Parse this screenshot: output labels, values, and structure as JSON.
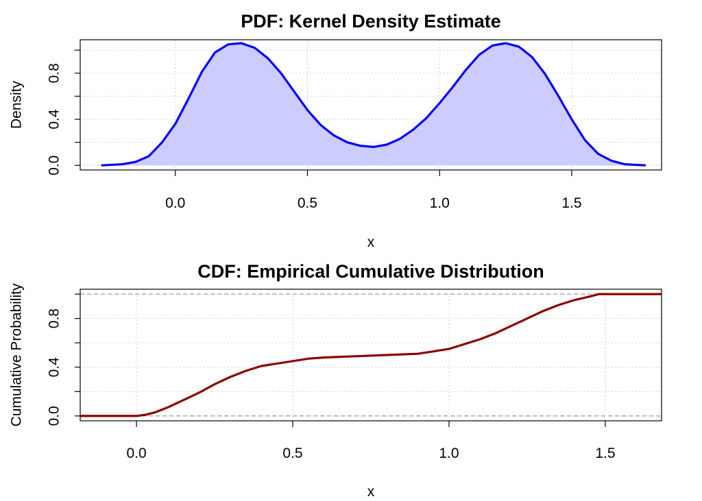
{
  "chart_data": [
    {
      "type": "area",
      "title": "PDF: Kernel Density Estimate",
      "xlabel": "x",
      "ylabel": "Density",
      "xlim": [
        -0.36,
        1.84
      ],
      "ylim": [
        -0.04,
        1.09
      ],
      "x_ticks": [
        0.0,
        0.5,
        1.0,
        1.5
      ],
      "x_tick_labels": [
        "0.0",
        "0.5",
        "1.0",
        "1.5"
      ],
      "y_ticks": [
        0.0,
        0.4,
        0.8
      ],
      "y_tick_labels": [
        "0.0",
        "0.4",
        "0.8"
      ],
      "grid": true,
      "line_color": "#0000ff",
      "fill_color": "#ccccff",
      "series": [
        {
          "x": [
            -0.28,
            -0.2,
            -0.15,
            -0.1,
            -0.05,
            0.0,
            0.05,
            0.1,
            0.15,
            0.2,
            0.25,
            0.3,
            0.35,
            0.4,
            0.45,
            0.5,
            0.55,
            0.6,
            0.65,
            0.7,
            0.75,
            0.8,
            0.85,
            0.9,
            0.95,
            1.0,
            1.05,
            1.1,
            1.15,
            1.2,
            1.25,
            1.3,
            1.35,
            1.4,
            1.45,
            1.5,
            1.55,
            1.6,
            1.65,
            1.7,
            1.78
          ],
          "values": [
            0.0,
            0.01,
            0.03,
            0.08,
            0.2,
            0.36,
            0.58,
            0.81,
            0.98,
            1.05,
            1.06,
            1.02,
            0.93,
            0.8,
            0.64,
            0.48,
            0.35,
            0.26,
            0.2,
            0.17,
            0.16,
            0.18,
            0.23,
            0.31,
            0.41,
            0.54,
            0.68,
            0.83,
            0.96,
            1.04,
            1.06,
            1.03,
            0.94,
            0.79,
            0.6,
            0.4,
            0.22,
            0.1,
            0.04,
            0.01,
            0.0
          ]
        }
      ]
    },
    {
      "type": "line",
      "title": "CDF: Empirical Cumulative Distribution",
      "xlabel": "x",
      "ylabel": "Cumulative Probability",
      "xlim": [
        -0.18,
        1.68
      ],
      "ylim": [
        -0.04,
        1.04
      ],
      "x_ticks": [
        0.0,
        0.5,
        1.0,
        1.5
      ],
      "x_tick_labels": [
        "0.0",
        "0.5",
        "1.0",
        "1.5"
      ],
      "y_ticks": [
        0.0,
        0.4,
        0.8
      ],
      "y_tick_labels": [
        "0.0",
        "0.4",
        "0.8"
      ],
      "grid": true,
      "reference_lines": [
        0,
        1
      ],
      "line_color": "#8b0000",
      "series": [
        {
          "x": [
            -0.18,
            0.0,
            0.03,
            0.06,
            0.1,
            0.15,
            0.2,
            0.25,
            0.3,
            0.35,
            0.4,
            0.45,
            0.5,
            0.55,
            0.6,
            0.7,
            0.8,
            0.9,
            0.95,
            1.0,
            1.05,
            1.1,
            1.15,
            1.2,
            1.25,
            1.3,
            1.35,
            1.4,
            1.45,
            1.48,
            1.68
          ],
          "values": [
            0.0,
            0.0,
            0.01,
            0.03,
            0.07,
            0.13,
            0.19,
            0.26,
            0.32,
            0.37,
            0.41,
            0.43,
            0.45,
            0.47,
            0.48,
            0.49,
            0.5,
            0.51,
            0.53,
            0.55,
            0.59,
            0.63,
            0.68,
            0.74,
            0.8,
            0.86,
            0.91,
            0.95,
            0.98,
            1.0,
            1.0
          ]
        }
      ]
    }
  ]
}
